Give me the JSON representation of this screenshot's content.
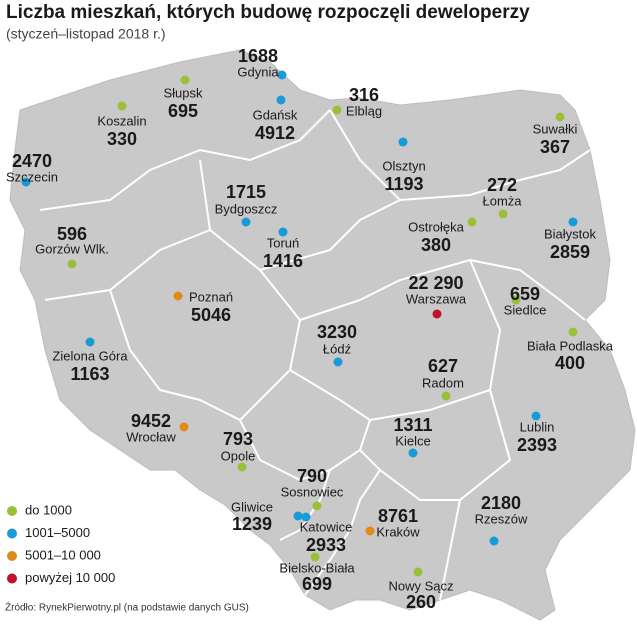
{
  "header": {
    "title": "Liczba mieszkań, których budowę rozpoczęli deweloperzy",
    "subtitle": "(styczeń–listopad 2018 r.)"
  },
  "legend": [
    {
      "label": "do 1000",
      "color": "#9cbf3a"
    },
    {
      "label": "1001–5000",
      "color": "#1a9ad6"
    },
    {
      "label": "5001–10 000",
      "color": "#e08a1e"
    },
    {
      "label": "powyżej 10 000",
      "color": "#c0102a"
    }
  ],
  "cities": [
    {
      "name": "Gdynia",
      "value": 1688,
      "color": "#1a9ad6"
    },
    {
      "name": "Słupsk",
      "value": 695,
      "color": "#9cbf3a"
    },
    {
      "name": "Gdańsk",
      "value": 4912,
      "color": "#1a9ad6"
    },
    {
      "name": "Elbląg",
      "value": 316,
      "color": "#9cbf3a"
    },
    {
      "name": "Koszalin",
      "value": 330,
      "color": "#9cbf3a"
    },
    {
      "name": "Suwałki",
      "value": 367,
      "color": "#9cbf3a"
    },
    {
      "name": "Szczecin",
      "value": 2470,
      "color": "#1a9ad6"
    },
    {
      "name": "Olsztyn",
      "value": 1193,
      "color": "#1a9ad6"
    },
    {
      "name": "Łomża",
      "value": 272,
      "color": "#9cbf3a"
    },
    {
      "name": "Bydgoszcz",
      "value": 1715,
      "color": "#1a9ad6"
    },
    {
      "name": "Toruń",
      "value": 1416,
      "color": "#1a9ad6"
    },
    {
      "name": "Białystok",
      "value": 2859,
      "color": "#1a9ad6"
    },
    {
      "name": "Ostrołęka",
      "value": 380,
      "color": "#9cbf3a"
    },
    {
      "name": "Gorzów Wlk.",
      "value": 596,
      "color": "#9cbf3a"
    },
    {
      "name": "Warszawa",
      "value": {
        "value": 22290,
        "label": "22 290"
      },
      "color": "#c0102a"
    },
    {
      "name": "Siedlce",
      "value": 659,
      "color": "#9cbf3a"
    },
    {
      "name": "Poznań",
      "value": 5046,
      "color": "#e08a1e"
    },
    {
      "name": "Łódź",
      "value": 3230,
      "color": "#1a9ad6"
    },
    {
      "name": "Zielona Góra",
      "value": 1163,
      "color": "#1a9ad6"
    },
    {
      "name": "Biała Podlaska",
      "value": 400,
      "color": "#9cbf3a"
    },
    {
      "name": "Radom",
      "value": 627,
      "color": "#9cbf3a"
    },
    {
      "name": "Wrocław",
      "value": 9452,
      "color": "#e08a1e"
    },
    {
      "name": "Opole",
      "value": 793,
      "color": "#9cbf3a"
    },
    {
      "name": "Kielce",
      "value": 1311,
      "color": "#1a9ad6"
    },
    {
      "name": "Lublin",
      "value": 2393,
      "color": "#1a9ad6"
    },
    {
      "name": "Sosnowiec",
      "value": 790,
      "color": "#9cbf3a"
    },
    {
      "name": "Gliwice",
      "value": 1239,
      "color": "#1a9ad6"
    },
    {
      "name": "Katowice",
      "value": 2933,
      "color": "#1a9ad6"
    },
    {
      "name": "Kraków",
      "value": 8761,
      "color": "#e08a1e"
    },
    {
      "name": "Rzeszów",
      "value": 2180,
      "color": "#1a9ad6"
    },
    {
      "name": "Bielsko-Biała",
      "value": 699,
      "color": "#9cbf3a"
    },
    {
      "name": "Nowy Sącz",
      "value": 260,
      "color": "#9cbf3a"
    }
  ],
  "source": "Źródło: RynekPierwotny.pl (na podstawie danych GUS)"
}
